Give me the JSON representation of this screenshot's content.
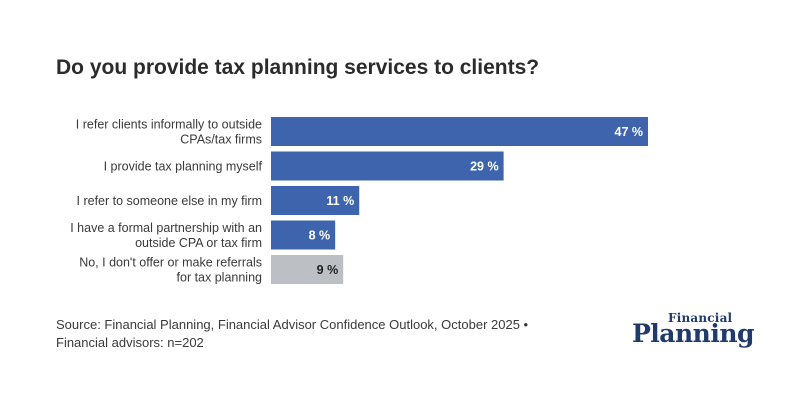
{
  "title": "Do you provide tax planning services to clients?",
  "chart_data": {
    "type": "bar",
    "orientation": "horizontal",
    "title": "Do you provide tax planning services to clients?",
    "categories": [
      [
        "I refer clients informally to outside",
        "CPAs/tax firms"
      ],
      [
        "I provide tax planning myself"
      ],
      [
        "I refer to someone else in my firm"
      ],
      [
        "I have a formal partnership with an",
        "outside CPA or tax firm"
      ],
      [
        "No, I don't offer or make referrals",
        "for tax planning"
      ]
    ],
    "values": [
      47,
      29,
      11,
      8,
      9
    ],
    "value_labels": [
      "47 %",
      "29 %",
      "11 %",
      "8 %",
      "9 %"
    ],
    "unit": "%",
    "colors": [
      "#3d64ad",
      "#3d64ad",
      "#3d64ad",
      "#3d64ad",
      "#bcbfc3"
    ],
    "label_colors": [
      "#ffffff",
      "#ffffff",
      "#ffffff",
      "#ffffff",
      "#222222"
    ],
    "xlim": [
      0,
      47
    ],
    "grid": false,
    "legend": "none"
  },
  "source": {
    "line1": "Source: Financial Planning, Financial Advisor Confidence Outlook, October 2025 •",
    "line2": "Financial advisors: n=202"
  },
  "logo": {
    "line1": "Financial",
    "line2": "Planning"
  }
}
